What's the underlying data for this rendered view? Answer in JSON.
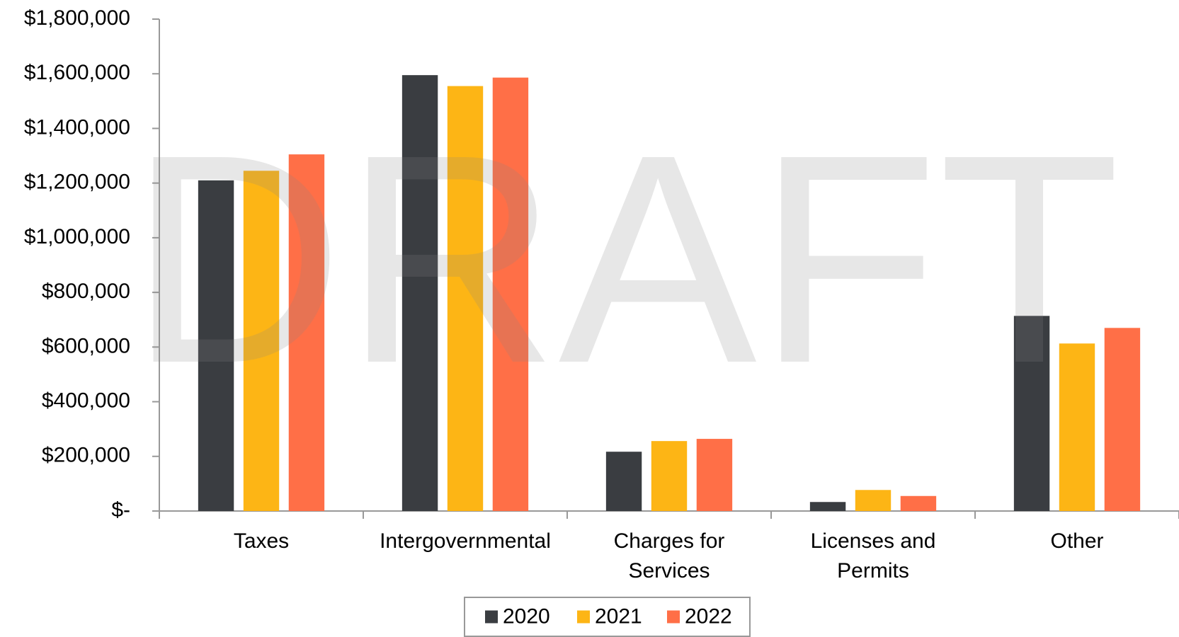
{
  "chart_data": {
    "type": "bar",
    "watermark": "DRAFT",
    "categories": [
      "Taxes",
      "Intergovernmental",
      "Charges for\nServices",
      "Licenses and\nPermits",
      "Other"
    ],
    "series": [
      {
        "name": "2020",
        "color": "#3a3d41",
        "values": [
          1210000,
          1595000,
          217000,
          33000,
          714000
        ]
      },
      {
        "name": "2021",
        "color": "#fdb515",
        "values": [
          1245000,
          1555000,
          256000,
          77000,
          613000
        ]
      },
      {
        "name": "2022",
        "color": "#ff6f47",
        "values": [
          1305000,
          1586000,
          264000,
          55000,
          670000
        ]
      }
    ],
    "ylim": [
      0,
      1800000
    ],
    "yticks": [
      {
        "value": 0,
        "label": "$-"
      },
      {
        "value": 200000,
        "label": "$200,000"
      },
      {
        "value": 400000,
        "label": "$400,000"
      },
      {
        "value": 600000,
        "label": "$600,000"
      },
      {
        "value": 800000,
        "label": "$800,000"
      },
      {
        "value": 1000000,
        "label": "$1,000,000"
      },
      {
        "value": 1200000,
        "label": "$1,200,000"
      },
      {
        "value": 1400000,
        "label": "$1,400,000"
      },
      {
        "value": 1600000,
        "label": "$1,600,000"
      },
      {
        "value": 1800000,
        "label": "$1,800,000"
      }
    ],
    "grid": false,
    "legend": "bottom"
  }
}
